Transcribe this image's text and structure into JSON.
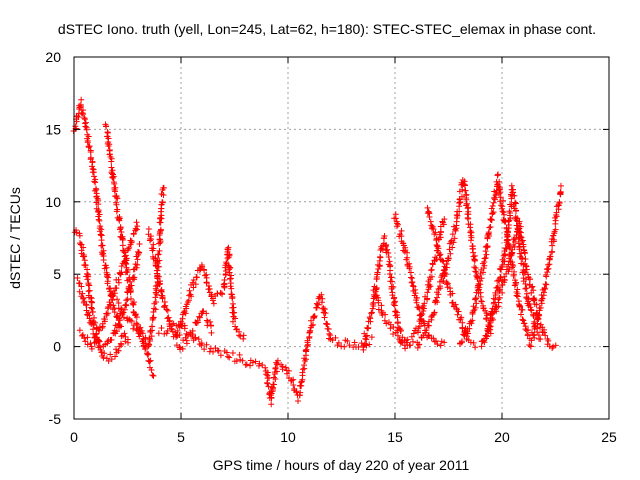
{
  "chart_data": {
    "type": "scatter",
    "title": "dSTEC Iono. truth (yell, Lon=245, Lat=62, h=180): STEC-STEC_elemax in phase cont.",
    "xlabel": "GPS time / hours of day 220 of year 2011",
    "ylabel": "dSTEC  / TECUs",
    "xlim": [
      0,
      25
    ],
    "ylim": [
      -5,
      20
    ],
    "xticks": [
      "0",
      "5",
      "10",
      "15",
      "20",
      "25"
    ],
    "yticks": [
      "-5",
      "0",
      "5",
      "10",
      "15",
      "20"
    ],
    "grid": true,
    "marker": "+",
    "color": "#ff0000",
    "arcs": [
      {
        "points": [
          [
            0.0,
            14.8
          ],
          [
            0.3,
            16.8
          ],
          [
            0.6,
            15.0
          ],
          [
            1.0,
            11.0
          ],
          [
            1.4,
            6.0
          ],
          [
            1.8,
            3.0
          ],
          [
            2.2,
            1.0
          ],
          [
            2.6,
            0.2
          ]
        ]
      },
      {
        "points": [
          [
            0.0,
            8.0
          ],
          [
            0.3,
            7.5
          ],
          [
            0.6,
            5.0
          ],
          [
            0.9,
            2.0
          ],
          [
            1.2,
            0.0
          ],
          [
            1.5,
            -0.8
          ],
          [
            1.9,
            -0.5
          ],
          [
            2.3,
            0.5
          ]
        ]
      },
      {
        "points": [
          [
            0.2,
            4.5
          ],
          [
            0.5,
            3.0
          ],
          [
            0.9,
            1.0
          ],
          [
            1.3,
            -0.2
          ],
          [
            1.8,
            0.5
          ],
          [
            2.3,
            2.5
          ],
          [
            2.8,
            5.0
          ],
          [
            3.1,
            7.0
          ]
        ]
      },
      {
        "points": [
          [
            0.3,
            1.0
          ],
          [
            0.8,
            0.0
          ],
          [
            1.3,
            1.2
          ],
          [
            1.8,
            3.5
          ],
          [
            2.3,
            5.5
          ],
          [
            2.7,
            7.2
          ],
          [
            3.0,
            8.5
          ]
        ]
      },
      {
        "points": [
          [
            1.5,
            15.5
          ],
          [
            1.8,
            12.0
          ],
          [
            2.2,
            8.0
          ],
          [
            2.6,
            4.0
          ],
          [
            3.0,
            1.5
          ],
          [
            3.4,
            -0.5
          ],
          [
            3.7,
            -2.0
          ]
        ]
      },
      {
        "points": [
          [
            2.0,
            3.0
          ],
          [
            2.5,
            2.0
          ],
          [
            3.0,
            1.0
          ],
          [
            3.5,
            0.0
          ],
          [
            3.8,
            3.0
          ],
          [
            4.0,
            7.0
          ],
          [
            4.1,
            10.0
          ],
          [
            4.2,
            11.0
          ]
        ]
      },
      {
        "points": [
          [
            3.5,
            8.0
          ],
          [
            3.8,
            6.0
          ],
          [
            4.2,
            3.0
          ],
          [
            4.6,
            1.0
          ],
          [
            5.0,
            0.0
          ],
          [
            5.5,
            1.0
          ],
          [
            6.0,
            2.5
          ],
          [
            6.5,
            1.0
          ]
        ]
      },
      {
        "points": [
          [
            4.8,
            0.5
          ],
          [
            5.5,
            4.0
          ],
          [
            6.0,
            5.5
          ],
          [
            6.5,
            3.0
          ],
          [
            7.0,
            4.0
          ],
          [
            7.2,
            6.8
          ],
          [
            7.5,
            1.5
          ],
          [
            8.0,
            0.5
          ]
        ]
      },
      {
        "points": [
          [
            4.0,
            1.0
          ],
          [
            5.0,
            1.5
          ],
          [
            6.0,
            0.0
          ],
          [
            7.0,
            -0.5
          ],
          [
            8.0,
            -1.0
          ],
          [
            9.0,
            -1.5
          ],
          [
            9.2,
            -3.8
          ],
          [
            9.5,
            -1.0
          ],
          [
            10.0,
            -1.8
          ],
          [
            10.5,
            -3.5
          ],
          [
            11.0,
            1.0
          ],
          [
            11.5,
            3.5
          ],
          [
            12.0,
            0.5
          ],
          [
            13.0,
            0.0
          ],
          [
            14.0,
            0.5
          ]
        ]
      },
      {
        "points": [
          [
            13.5,
            0.0
          ],
          [
            14.0,
            3.0
          ],
          [
            14.3,
            6.0
          ],
          [
            14.5,
            7.5
          ],
          [
            14.8,
            5.0
          ],
          [
            15.0,
            2.5
          ],
          [
            15.3,
            0.5
          ],
          [
            15.8,
            0.2
          ]
        ]
      },
      {
        "points": [
          [
            14.0,
            4.0
          ],
          [
            14.5,
            2.0
          ],
          [
            15.0,
            1.0
          ],
          [
            15.5,
            0.0
          ],
          [
            16.0,
            1.0
          ],
          [
            16.5,
            3.5
          ],
          [
            17.0,
            7.0
          ],
          [
            17.3,
            9.0
          ]
        ]
      },
      {
        "points": [
          [
            15.0,
            9.0
          ],
          [
            15.4,
            7.0
          ],
          [
            15.8,
            4.5
          ],
          [
            16.2,
            2.0
          ],
          [
            16.6,
            0.5
          ],
          [
            17.0,
            0.0
          ],
          [
            17.4,
            0.3
          ]
        ]
      },
      {
        "points": [
          [
            16.5,
            9.5
          ],
          [
            17.0,
            7.0
          ],
          [
            17.5,
            4.0
          ],
          [
            18.0,
            2.0
          ],
          [
            18.4,
            0.5
          ],
          [
            18.8,
            0.0
          ]
        ]
      },
      {
        "points": [
          [
            16.0,
            0.0
          ],
          [
            16.6,
            1.5
          ],
          [
            17.2,
            4.5
          ],
          [
            17.8,
            8.0
          ],
          [
            18.2,
            11.5
          ],
          [
            18.6,
            7.0
          ],
          [
            19.0,
            3.5
          ],
          [
            19.5,
            1.0
          ]
        ]
      },
      {
        "points": [
          [
            18.0,
            0.0
          ],
          [
            18.6,
            2.0
          ],
          [
            19.2,
            6.0
          ],
          [
            19.8,
            11.8
          ],
          [
            20.3,
            7.0
          ],
          [
            20.8,
            3.0
          ],
          [
            21.3,
            0.5
          ]
        ]
      },
      {
        "points": [
          [
            19.2,
            0.5
          ],
          [
            19.7,
            3.5
          ],
          [
            20.2,
            7.0
          ],
          [
            20.5,
            11.0
          ],
          [
            20.9,
            6.0
          ],
          [
            21.3,
            2.5
          ],
          [
            21.8,
            0.5
          ]
        ]
      },
      {
        "points": [
          [
            19.0,
            0.0
          ],
          [
            19.6,
            2.0
          ],
          [
            20.2,
            5.0
          ],
          [
            20.8,
            8.5
          ],
          [
            21.2,
            5.0
          ],
          [
            21.7,
            2.0
          ],
          [
            22.2,
            0.2
          ],
          [
            22.6,
            0.0
          ]
        ]
      },
      {
        "points": [
          [
            21.3,
            0.0
          ],
          [
            21.7,
            2.0
          ],
          [
            22.1,
            5.0
          ],
          [
            22.5,
            8.5
          ],
          [
            22.8,
            11.2
          ]
        ]
      }
    ]
  }
}
